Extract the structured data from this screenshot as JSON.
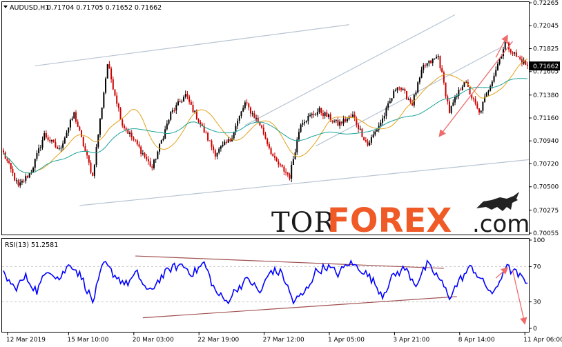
{
  "chart_data": [
    {
      "type": "candlestick",
      "symbol": "AUDUSD,H1",
      "ohlc_label": "0.71704 0.71705 0.71652 0.71662",
      "current_price": "0.71662",
      "ylim": [
        0.70055,
        0.72265
      ],
      "y_ticks": [
        "0.72265",
        "0.72045",
        "0.71825",
        "0.71605",
        "0.71380",
        "0.71160",
        "0.70940",
        "0.70720",
        "0.70500",
        "0.70275",
        "0.70055"
      ],
      "x_ticks": [
        "12 Mar 2019",
        "15 Mar 10:00",
        "20 Mar 03:00",
        "22 Mar 19:00",
        "27 Mar 12:00",
        "1 Apr 05:00",
        "3 Apr 21:00",
        "8 Apr 14:00",
        "11 Apr 06:00"
      ],
      "bull_color": "#000000",
      "bear_color": "#cc0000",
      "ma_colors": [
        "#e3a21a",
        "#1aa39a"
      ],
      "trendline_color": "#b7c4d1",
      "arrow_color": "#ef6b6b",
      "anchors": [
        [
          0,
          0.7082
        ],
        [
          8,
          0.705
        ],
        [
          15,
          0.7065
        ],
        [
          22,
          0.71
        ],
        [
          30,
          0.7085
        ],
        [
          38,
          0.712
        ],
        [
          48,
          0.706
        ],
        [
          56,
          0.7168
        ],
        [
          64,
          0.711
        ],
        [
          72,
          0.709
        ],
        [
          80,
          0.7068
        ],
        [
          90,
          0.712
        ],
        [
          98,
          0.7138
        ],
        [
          106,
          0.711
        ],
        [
          114,
          0.7082
        ],
        [
          122,
          0.7095
        ],
        [
          130,
          0.713
        ],
        [
          138,
          0.711
        ],
        [
          146,
          0.7075
        ],
        [
          154,
          0.706
        ],
        [
          160,
          0.7112
        ],
        [
          170,
          0.7123
        ],
        [
          180,
          0.711
        ],
        [
          188,
          0.7118
        ],
        [
          196,
          0.709
        ],
        [
          204,
          0.7115
        ],
        [
          212,
          0.7148
        ],
        [
          220,
          0.713
        ],
        [
          226,
          0.7165
        ],
        [
          234,
          0.7175
        ],
        [
          240,
          0.7122
        ],
        [
          248,
          0.7152
        ],
        [
          256,
          0.712
        ],
        [
          264,
          0.7158
        ],
        [
          270,
          0.7188
        ],
        [
          276,
          0.7175
        ],
        [
          282,
          0.7166
        ]
      ]
    },
    {
      "type": "line",
      "title": "RSI(13) 51.2581",
      "ylim": [
        0,
        100
      ],
      "y_ticks": [
        "100",
        "70",
        "30",
        "0"
      ],
      "levels": [
        70,
        30
      ],
      "line_color": "#0000ff",
      "channel_color": "#a05050",
      "anchors": [
        [
          0,
          62
        ],
        [
          6,
          45
        ],
        [
          12,
          58
        ],
        [
          18,
          42
        ],
        [
          24,
          68
        ],
        [
          30,
          56
        ],
        [
          36,
          74
        ],
        [
          42,
          58
        ],
        [
          48,
          30
        ],
        [
          54,
          74
        ],
        [
          60,
          60
        ],
        [
          66,
          50
        ],
        [
          72,
          62
        ],
        [
          78,
          40
        ],
        [
          84,
          56
        ],
        [
          90,
          68
        ],
        [
          96,
          72
        ],
        [
          102,
          62
        ],
        [
          108,
          74
        ],
        [
          114,
          42
        ],
        [
          120,
          30
        ],
        [
          126,
          46
        ],
        [
          132,
          56
        ],
        [
          138,
          40
        ],
        [
          144,
          66
        ],
        [
          150,
          62
        ],
        [
          156,
          30
        ],
        [
          162,
          40
        ],
        [
          168,
          64
        ],
        [
          174,
          70
        ],
        [
          180,
          62
        ],
        [
          186,
          74
        ],
        [
          192,
          68
        ],
        [
          198,
          56
        ],
        [
          204,
          38
        ],
        [
          210,
          60
        ],
        [
          216,
          68
        ],
        [
          222,
          50
        ],
        [
          228,
          72
        ],
        [
          234,
          58
        ],
        [
          240,
          36
        ],
        [
          246,
          56
        ],
        [
          252,
          70
        ],
        [
          258,
          52
        ],
        [
          264,
          38
        ],
        [
          270,
          70
        ],
        [
          276,
          62
        ],
        [
          282,
          51
        ]
      ]
    }
  ],
  "logo": {
    "part1": "TOR",
    "part2": "FOREX",
    "part3": ".com"
  }
}
